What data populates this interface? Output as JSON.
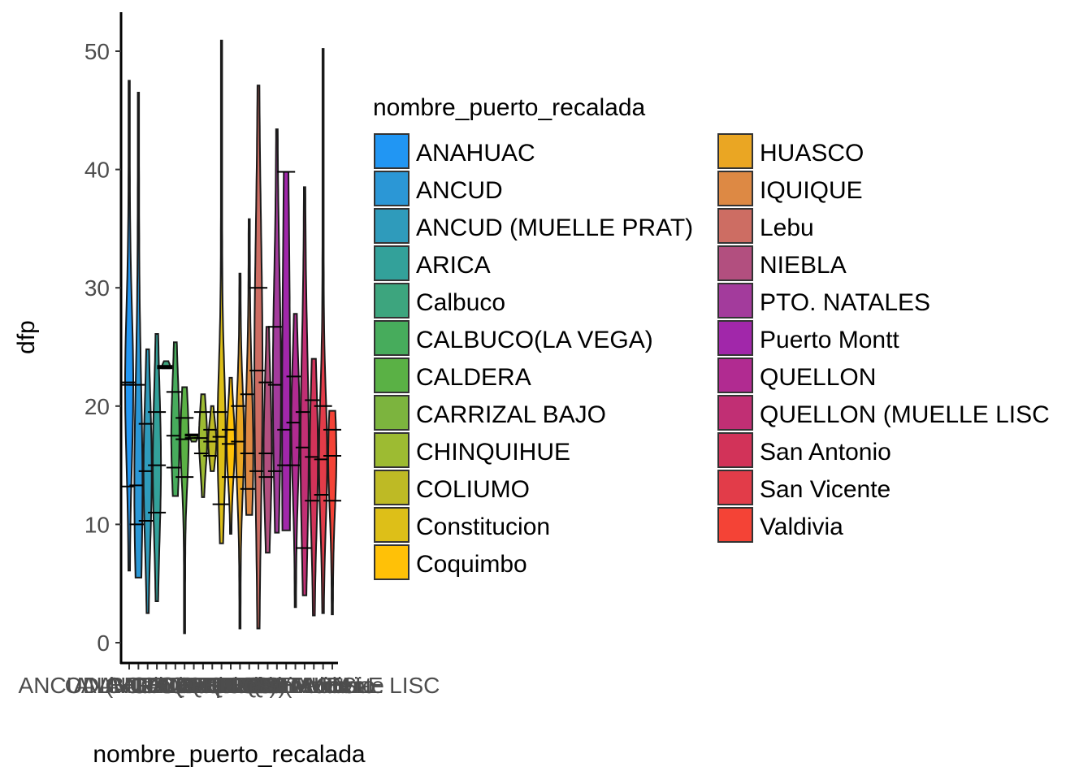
{
  "chart_data": {
    "type": "violin",
    "xlabel": "nombre_puerto_recalada",
    "ylabel": "dfp",
    "ylim": [
      0,
      52
    ],
    "yticks": [
      "0",
      "10",
      "20",
      "30",
      "40",
      "50"
    ],
    "grid": false,
    "legend_title": "nombre_puerto_recalada",
    "legend_position": "right",
    "legend_columns": 2,
    "categories": [
      "ANAHUAC",
      "ANCUD",
      "ANCUD (MUELLE PRAT)",
      "ARICA",
      "Calbuco",
      "CALBUCO(LA VEGA)",
      "CALDERA",
      "CARRIZAL BAJO",
      "CHINQUIHUE",
      "COLIUMO",
      "Constitucion",
      "Coquimbo",
      "HUASCO",
      "IQUIQUE",
      "Lebu",
      "NIEBLA",
      "PTO. NATALES",
      "Puerto Montt",
      "QUELLON",
      "QUELLON (MUELLE LISC",
      "San Antonio",
      "San Vicente",
      "Valdivia"
    ],
    "colors": [
      "#2196F3",
      "#2B97D6",
      "#2F9BBB",
      "#33A19A",
      "#3DA57E",
      "#47AC5C",
      "#5AB145",
      "#7CB43E",
      "#9DBB32",
      "#BEBA25",
      "#DDBF18",
      "#FFC107",
      "#EAA623",
      "#DD8944",
      "#CD6D63",
      "#B24F7F",
      "#A33B9C",
      "#A127AA",
      "#B12B91",
      "#C12F74",
      "#D23359",
      "#E23C49",
      "#F44336"
    ],
    "series": [
      {
        "min": 6.1,
        "max": 47.5,
        "median": 21.8,
        "q1": 13.2,
        "q3": 22.0
      },
      {
        "min": 5.5,
        "max": 46.5,
        "median": 13.3,
        "q1": 10.0,
        "q3": 21.8
      },
      {
        "min": 2.5,
        "max": 24.8,
        "median": 14.5,
        "q1": 10.3,
        "q3": 18.5
      },
      {
        "min": 3.5,
        "max": 26.1,
        "median": 15.0,
        "q1": 11.0,
        "q3": 19.5
      },
      {
        "min": 23.2,
        "max": 23.8,
        "median": 23.3,
        "q1": 23.2,
        "q3": 23.4
      },
      {
        "min": 12.4,
        "max": 25.4,
        "median": 17.5,
        "q1": 14.8,
        "q3": 21.2
      },
      {
        "min": 0.8,
        "max": 21.6,
        "median": 17.2,
        "q1": 14.0,
        "q3": 19.0
      },
      {
        "min": 17.0,
        "max": 17.6,
        "median": 17.5,
        "q1": 17.3,
        "q3": 17.6
      },
      {
        "min": 12.3,
        "max": 21.0,
        "median": 17.3,
        "q1": 16.0,
        "q3": 19.5
      },
      {
        "min": 14.5,
        "max": 20.0,
        "median": 17.0,
        "q1": 15.8,
        "q3": 18.0
      },
      {
        "min": 8.4,
        "max": 50.9,
        "median": 17.4,
        "q1": 11.7,
        "q3": 19.5
      },
      {
        "min": 9.2,
        "max": 22.4,
        "median": 16.8,
        "q1": 14.0,
        "q3": 18.0
      },
      {
        "min": 1.2,
        "max": 31.2,
        "median": 17.0,
        "q1": 14.0,
        "q3": 20.0
      },
      {
        "min": 10.8,
        "max": 35.8,
        "median": 16.0,
        "q1": 13.0,
        "q3": 21.0
      },
      {
        "min": 1.2,
        "max": 47.1,
        "median": 23.0,
        "q1": 14.5,
        "q3": 30.0
      },
      {
        "min": 7.6,
        "max": 26.7,
        "median": 16.0,
        "q1": 14.0,
        "q3": 22.0
      },
      {
        "min": 9.3,
        "max": 43.4,
        "median": 21.8,
        "q1": 14.5,
        "q3": 26.7
      },
      {
        "min": 9.5,
        "max": 39.8,
        "median": 18.0,
        "q1": 15.0,
        "q3": 39.8
      },
      {
        "min": 3.0,
        "max": 27.8,
        "median": 18.6,
        "q1": 15.0,
        "q3": 22.5
      },
      {
        "min": 4.0,
        "max": 38.5,
        "median": 16.5,
        "q1": 8.0,
        "q3": 19.5
      },
      {
        "min": 2.3,
        "max": 24.0,
        "median": 15.7,
        "q1": 12.0,
        "q3": 20.5
      },
      {
        "min": 2.5,
        "max": 50.2,
        "median": 15.5,
        "q1": 12.5,
        "q3": 20.0
      },
      {
        "min": 2.4,
        "max": 19.6,
        "median": 15.8,
        "q1": 12.0,
        "q3": 18.0
      }
    ],
    "x_tick_labels_visible": [
      "ANAHUAC",
      "QUELLON (MUELLE LISC"
    ]
  }
}
